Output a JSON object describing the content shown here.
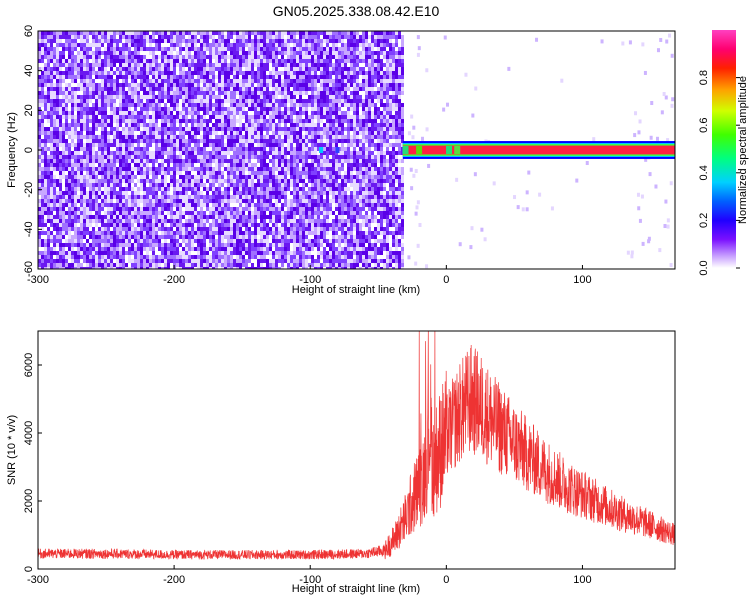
{
  "title": "GN05.2025.338.08.42.E10",
  "chart_data": [
    {
      "type": "heatmap",
      "xlabel": "Height of straight line (km)",
      "ylabel": "Frequency (Hz)",
      "xlim": [
        -300,
        168
      ],
      "ylim": [
        -60,
        60
      ],
      "x_ticks": [
        -300,
        -200,
        -100,
        0,
        100
      ],
      "y_ticks": [
        -60,
        -40,
        -20,
        0,
        20,
        40,
        60
      ],
      "colorbar": {
        "label": "Normalized spectral amplitude",
        "range": [
          0,
          1
        ],
        "ticks": [
          0.0,
          0.2,
          0.4,
          0.6,
          0.8
        ],
        "colormap": [
          "#ffffff",
          "#c8a0ff",
          "#6a00ff",
          "#0000ff",
          "#00c8ff",
          "#00ff60",
          "#60ff00",
          "#ffff00",
          "#ff8000",
          "#ff0000",
          "#ff0080",
          "#ff40c0"
        ]
      },
      "regions": [
        {
          "x_range": [
            -300,
            -32
          ],
          "freq_range": [
            -60,
            60
          ],
          "amplitude": "noise ~0.0-0.15"
        },
        {
          "x_range": [
            -32,
            168
          ],
          "freq_range": [
            -2,
            2
          ],
          "amplitude": "line ~0.9-1.0 at 0 Hz"
        }
      ]
    },
    {
      "type": "line",
      "xlabel": "Height of straight line (km)",
      "ylabel": "SNR (10 * v/v)",
      "xlim": [
        -300,
        168
      ],
      "ylim": [
        0,
        7000
      ],
      "x_ticks": [
        -300,
        -200,
        -100,
        0,
        100
      ],
      "y_ticks": [
        0,
        2000,
        4000,
        6000
      ],
      "color": "#ee3333",
      "series": [
        {
          "x": [
            -300,
            -250,
            -200,
            -150,
            -100,
            -60,
            -45,
            -38,
            -30,
            -25,
            -20,
            -15,
            -12,
            -10,
            -5,
            0,
            10,
            18,
            25,
            35,
            50,
            70,
            90,
            110,
            130,
            150,
            168
          ],
          "y": [
            450,
            450,
            420,
            420,
            420,
            450,
            550,
            900,
            1500,
            2000,
            2400,
            3000,
            4500,
            3000,
            3500,
            3900,
            4600,
            5000,
            4800,
            4300,
            3700,
            3000,
            2400,
            2000,
            1600,
            1300,
            1000
          ]
        }
      ]
    }
  ]
}
